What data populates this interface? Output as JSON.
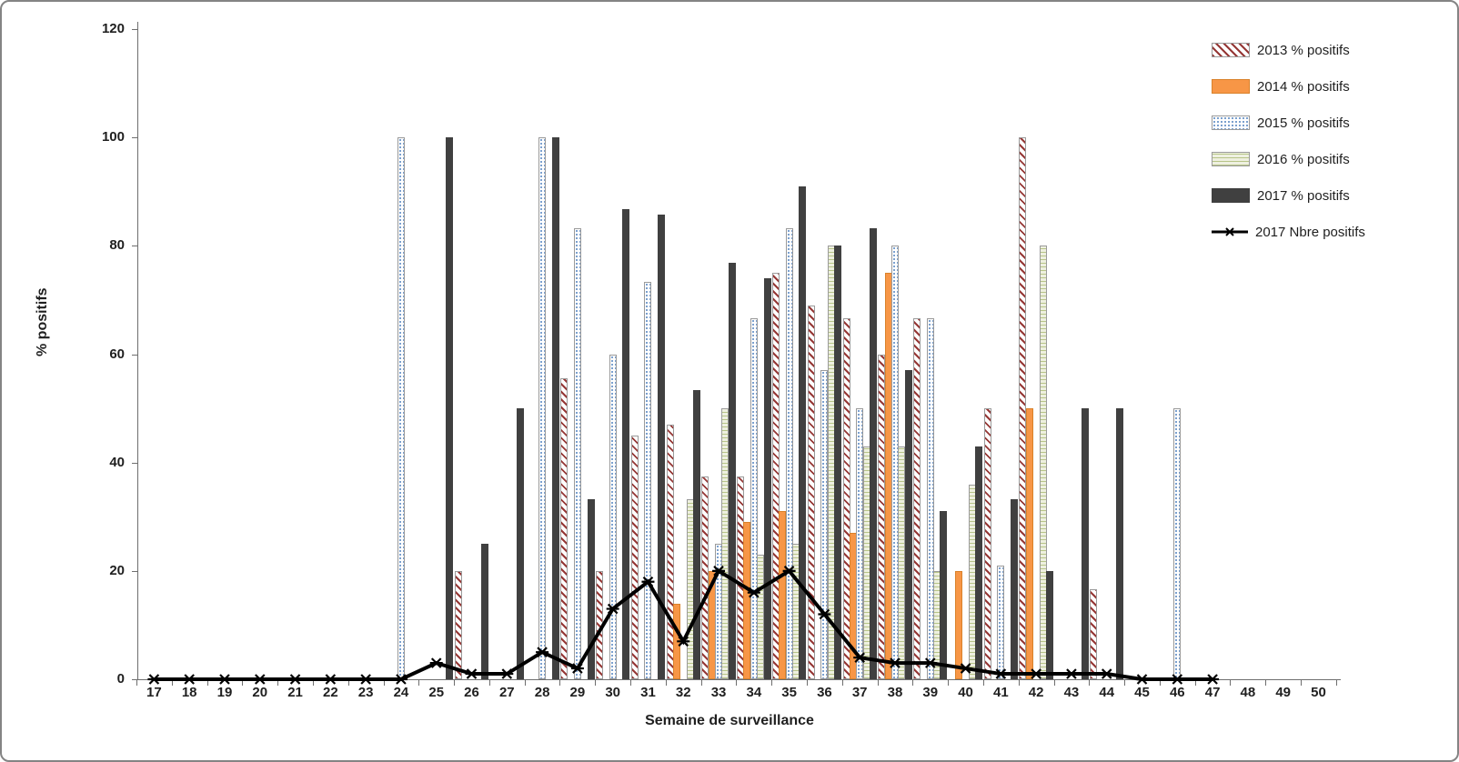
{
  "frame": {
    "background": "#FFFFFF",
    "border_color": "#848484"
  },
  "chart_data": {
    "type": "bar+line",
    "title": "",
    "xlabel": "Semaine de surveillance",
    "ylabel": "% positifs",
    "ylim": [
      0,
      120
    ],
    "yticks": [
      0,
      20,
      40,
      60,
      80,
      100,
      120
    ],
    "grid": false,
    "legend_position": "top-right",
    "categories": [
      17,
      18,
      19,
      20,
      21,
      22,
      23,
      24,
      25,
      26,
      27,
      28,
      29,
      30,
      31,
      32,
      33,
      34,
      35,
      36,
      37,
      38,
      39,
      40,
      41,
      42,
      43,
      44,
      45,
      46,
      47,
      48,
      49,
      50
    ],
    "series": [
      {
        "id": "s2013",
        "name": "2013 % positifs",
        "type": "bar",
        "pattern": "diagonal-stripes",
        "color": "#953735",
        "values": [
          null,
          null,
          null,
          null,
          null,
          null,
          null,
          null,
          null,
          20,
          null,
          null,
          55.6,
          20,
          45,
          47,
          37.5,
          37.5,
          75,
          69,
          66.7,
          60,
          66.7,
          null,
          50,
          100,
          null,
          16.7,
          null,
          null,
          null,
          null,
          null,
          null
        ]
      },
      {
        "id": "s2014",
        "name": "2014 % positifs",
        "type": "bar",
        "pattern": "solid",
        "color": "#F79646",
        "values": [
          null,
          null,
          null,
          null,
          null,
          null,
          null,
          null,
          null,
          null,
          null,
          null,
          null,
          null,
          null,
          14,
          20,
          29,
          31,
          null,
          27,
          75,
          null,
          20,
          null,
          50,
          null,
          null,
          null,
          null,
          null,
          null,
          null,
          null
        ]
      },
      {
        "id": "s2015",
        "name": "2015 % positifs",
        "type": "bar",
        "pattern": "dots",
        "color": "#4F81BD",
        "values": [
          null,
          null,
          null,
          null,
          null,
          null,
          null,
          100,
          null,
          null,
          null,
          100,
          83.3,
          60,
          73.3,
          null,
          25,
          66.7,
          83.3,
          57,
          50,
          80,
          66.7,
          null,
          21,
          null,
          null,
          null,
          null,
          50,
          null,
          null,
          null,
          null
        ]
      },
      {
        "id": "s2016",
        "name": "2016 % positifs",
        "type": "bar",
        "pattern": "waves",
        "color": "#C3D69B",
        "values": [
          null,
          null,
          null,
          null,
          null,
          null,
          null,
          null,
          null,
          null,
          null,
          null,
          null,
          null,
          null,
          33.3,
          50,
          23,
          25,
          80,
          43,
          43,
          20,
          36,
          null,
          80,
          null,
          null,
          null,
          null,
          null,
          null,
          null,
          null
        ]
      },
      {
        "id": "s2017",
        "name": "2017 % positifs",
        "type": "bar",
        "pattern": "solid",
        "color": "#404040",
        "values": [
          null,
          null,
          null,
          null,
          null,
          null,
          null,
          null,
          100,
          25,
          50,
          100,
          33.3,
          86.7,
          85.7,
          53.3,
          76.9,
          74,
          90.9,
          80,
          83.3,
          57.1,
          31,
          43,
          33.3,
          20,
          50,
          50,
          null,
          null,
          null,
          null,
          null,
          null
        ]
      },
      {
        "id": "line2017",
        "name": "2017 Nbre positifs",
        "type": "line",
        "marker": "asterisk",
        "color": "#000000",
        "values": [
          0,
          0,
          0,
          0,
          0,
          0,
          0,
          0,
          3,
          1,
          1,
          5,
          2,
          13,
          18,
          7,
          20,
          16,
          20,
          12,
          4,
          3,
          3,
          2,
          1,
          1,
          1,
          1,
          0,
          0,
          0,
          null,
          null,
          null
        ]
      }
    ]
  },
  "legend": {
    "items": [
      {
        "series": "s2013",
        "label": "2013 % positifs"
      },
      {
        "series": "s2014",
        "label": "2014 % positifs"
      },
      {
        "series": "s2015",
        "label": "2015 % positifs"
      },
      {
        "series": "s2016",
        "label": "2016 % positifs"
      },
      {
        "series": "s2017",
        "label": "2017 % positifs"
      },
      {
        "series": "line2017",
        "label": "2017 Nbre positifs"
      }
    ]
  }
}
